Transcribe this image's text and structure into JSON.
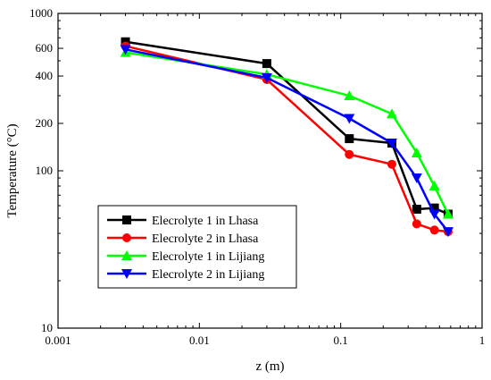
{
  "chart_data": {
    "type": "line",
    "title": "",
    "xlabel": "z (m)",
    "ylabel": "Temperature (°C)",
    "x_scale": "log",
    "y_scale": "log",
    "xlim": [
      0.001,
      1
    ],
    "ylim": [
      10,
      1000
    ],
    "x_ticks": [
      {
        "value": 0.001,
        "label": "0.001"
      },
      {
        "value": 0.01,
        "label": "0.01"
      },
      {
        "value": 0.1,
        "label": "0.1"
      },
      {
        "value": 1,
        "label": "1"
      }
    ],
    "y_ticks": [
      {
        "value": 10,
        "label": "10"
      },
      {
        "value": 100,
        "label": "100"
      },
      {
        "value": 200,
        "label": "200"
      },
      {
        "value": 400,
        "label": "400"
      },
      {
        "value": 600,
        "label": "600"
      },
      {
        "value": 1000,
        "label": "1000"
      }
    ],
    "legend_position": "lower-left",
    "grid": false,
    "series": [
      {
        "name": "Elecrolyte 1 in Lhasa",
        "color": "#000000",
        "marker": "square",
        "x": [
          0.003,
          0.03,
          0.115,
          0.23,
          0.345,
          0.46,
          0.575
        ],
        "y": [
          660,
          480,
          160,
          150,
          57,
          58,
          53
        ]
      },
      {
        "name": "Elecrolyte 2 in Lhasa",
        "color": "#ff0000",
        "marker": "circle",
        "x": [
          0.003,
          0.03,
          0.115,
          0.23,
          0.345,
          0.46,
          0.575
        ],
        "y": [
          620,
          380,
          127,
          110,
          46,
          42,
          41
        ]
      },
      {
        "name": "Elecrolyte 1 in Lijiang",
        "color": "#00ff00",
        "marker": "triangle-up",
        "x": [
          0.003,
          0.03,
          0.115,
          0.23,
          0.345,
          0.46,
          0.575
        ],
        "y": [
          565,
          410,
          300,
          230,
          130,
          80,
          53
        ]
      },
      {
        "name": "Elecrolyte 2 in Lijiang",
        "color": "#0000ff",
        "marker": "triangle-down",
        "x": [
          0.003,
          0.03,
          0.115,
          0.23,
          0.345,
          0.46,
          0.575
        ],
        "y": [
          590,
          390,
          215,
          150,
          90,
          53,
          41
        ]
      }
    ]
  }
}
